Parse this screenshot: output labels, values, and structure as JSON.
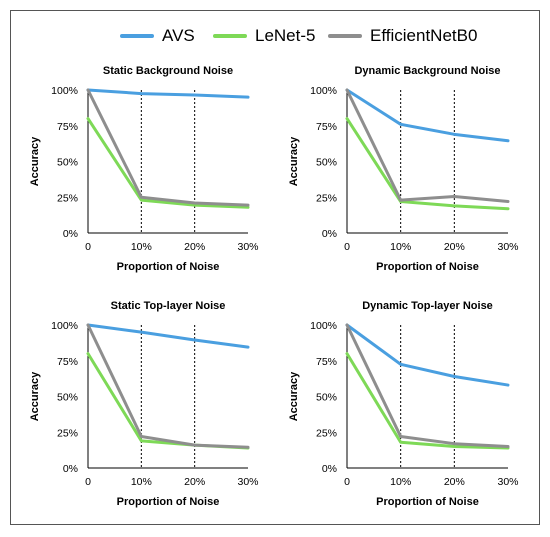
{
  "legend": [
    {
      "name": "AVS",
      "color": "#4a9fe0"
    },
    {
      "name": "LeNet-5",
      "color": "#7ed957"
    },
    {
      "name": "EfficientNetB0",
      "color": "#8e8e8e"
    }
  ],
  "chart_data": [
    {
      "type": "line",
      "title": "Static Background Noise",
      "xlabel": "Proportion of Noise",
      "ylabel": "Accuracy",
      "x": [
        "0",
        "10%",
        "20%",
        "30%"
      ],
      "y_ticks": [
        "0%",
        "25%",
        "50%",
        "75%",
        "100%"
      ],
      "ylim": [
        0,
        100
      ],
      "vlines": [
        "10%",
        "20%"
      ],
      "series": [
        {
          "name": "AVS",
          "values": [
            100,
            97.5,
            96.5,
            95
          ]
        },
        {
          "name": "LeNet-5",
          "values": [
            80,
            23,
            19.5,
            18
          ]
        },
        {
          "name": "EfficientNetB0",
          "values": [
            100,
            25,
            21,
            19.5
          ]
        }
      ]
    },
    {
      "type": "line",
      "title": "Dynamic Background Noise",
      "xlabel": "Proportion of Noise",
      "ylabel": "Accuracy",
      "x": [
        "0",
        "10%",
        "20%",
        "30%"
      ],
      "y_ticks": [
        "0%",
        "25%",
        "50%",
        "75%",
        "100%"
      ],
      "ylim": [
        0,
        100
      ],
      "vlines": [
        "10%",
        "20%"
      ],
      "series": [
        {
          "name": "AVS",
          "values": [
            100,
            76,
            69,
            64.5
          ]
        },
        {
          "name": "LeNet-5",
          "values": [
            80,
            22,
            19,
            17
          ]
        },
        {
          "name": "EfficientNetB0",
          "values": [
            100,
            23,
            25.5,
            22
          ]
        }
      ]
    },
    {
      "type": "line",
      "title": "Static Top-layer Noise",
      "xlabel": "Proportion of Noise",
      "ylabel": "Accuracy",
      "x": [
        "0",
        "10%",
        "20%",
        "30%"
      ],
      "y_ticks": [
        "0%",
        "25%",
        "50%",
        "75%",
        "100%"
      ],
      "ylim": [
        0,
        100
      ],
      "vlines": [
        "10%",
        "20%"
      ],
      "series": [
        {
          "name": "AVS",
          "values": [
            100,
            95,
            89.5,
            84.5
          ]
        },
        {
          "name": "LeNet-5",
          "values": [
            80,
            19,
            16,
            14
          ]
        },
        {
          "name": "EfficientNetB0",
          "values": [
            100,
            22,
            16,
            14.5
          ]
        }
      ]
    },
    {
      "type": "line",
      "title": "Dynamic Top-layer Noise",
      "xlabel": "Proportion of Noise",
      "ylabel": "Accuracy",
      "x": [
        "0",
        "10%",
        "20%",
        "30%"
      ],
      "y_ticks": [
        "0%",
        "25%",
        "50%",
        "75%",
        "100%"
      ],
      "ylim": [
        0,
        100
      ],
      "vlines": [
        "10%",
        "20%"
      ],
      "series": [
        {
          "name": "AVS",
          "values": [
            100,
            72.5,
            64,
            58
          ]
        },
        {
          "name": "LeNet-5",
          "values": [
            80,
            18,
            15,
            14
          ]
        },
        {
          "name": "EfficientNetB0",
          "values": [
            100,
            22,
            17,
            15
          ]
        }
      ]
    }
  ]
}
